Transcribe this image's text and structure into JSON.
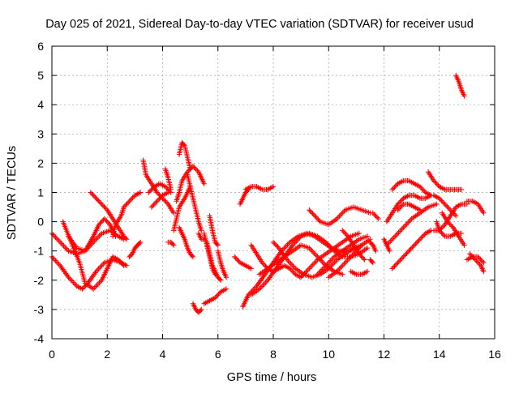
{
  "chart_data": {
    "type": "scatter",
    "title": "Day 025 of 2021, Sidereal Day-to-day VTEC variation (SDTVAR) for receiver usud",
    "xlabel": "GPS time / hours",
    "ylabel": "SDTVAR / TECUs",
    "xlim": [
      0,
      16
    ],
    "ylim": [
      -4,
      6
    ],
    "xticks": [
      0,
      2,
      4,
      6,
      8,
      10,
      12,
      14,
      16
    ],
    "yticks": [
      -4,
      -3,
      -2,
      -1,
      0,
      1,
      2,
      3,
      4,
      5,
      6
    ],
    "grid": true,
    "legend": "none",
    "marker": "plus",
    "series": [
      {
        "color": "#ff0000",
        "arcs": [
          {
            "x": [
              0.0,
              0.3,
              0.6,
              0.9,
              1.2,
              1.5,
              1.8,
              2.1,
              2.4,
              2.6
            ],
            "y": [
              -0.4,
              -0.7,
              -1.0,
              -1.1,
              -1.0,
              -0.7,
              -0.4,
              -0.3,
              -0.5,
              -0.6
            ]
          },
          {
            "x": [
              0.0,
              0.3,
              0.6,
              0.9,
              1.1,
              1.3,
              1.6,
              1.9,
              2.2,
              2.5,
              2.7
            ],
            "y": [
              -1.2,
              -1.5,
              -1.9,
              -2.2,
              -2.3,
              -2.1,
              -1.7,
              -1.4,
              -1.3,
              -1.4,
              -1.5
            ]
          },
          {
            "x": [
              0.4,
              0.7,
              1.0,
              1.2,
              1.5,
              1.8,
              2.0,
              2.2,
              2.4,
              2.6
            ],
            "y": [
              0.0,
              -0.7,
              -1.4,
              -2.1,
              -2.3,
              -2.0,
              -1.6,
              -1.2,
              -1.3,
              -1.5
            ]
          },
          {
            "x": [
              0.6,
              0.9,
              1.2,
              1.5,
              1.7,
              1.9,
              2.1,
              2.3
            ],
            "y": [
              -0.5,
              -0.9,
              -1.0,
              -0.5,
              -0.1,
              0.1,
              -0.1,
              -0.5
            ]
          },
          {
            "x": [
              1.4,
              1.6,
              1.8,
              2.0,
              2.2,
              2.4,
              2.6,
              2.7
            ],
            "y": [
              1.0,
              0.8,
              0.6,
              0.4,
              0.1,
              -0.2,
              -0.5,
              -0.6
            ]
          },
          {
            "x": [
              2.2,
              2.3,
              2.5,
              2.6,
              2.8,
              3.0,
              3.2
            ],
            "y": [
              -0.5,
              -0.1,
              0.2,
              0.5,
              0.7,
              0.9,
              1.0
            ]
          },
          {
            "x": [
              2.8,
              2.9,
              3.0,
              3.1,
              3.2
            ],
            "y": [
              -1.2,
              -1.1,
              -0.9,
              -0.8,
              -0.7
            ]
          },
          {
            "x": [
              3.3,
              3.4,
              3.6,
              3.8,
              4.0,
              4.2,
              4.4
            ],
            "y": [
              2.1,
              1.6,
              1.3,
              1.0,
              0.8,
              0.6,
              0.3
            ]
          },
          {
            "x": [
              3.5,
              3.7,
              3.9,
              4.1,
              4.3
            ],
            "y": [
              1.0,
              1.2,
              1.3,
              1.2,
              1.0
            ]
          },
          {
            "x": [
              3.6,
              3.8,
              4.0,
              4.2
            ],
            "y": [
              0.5,
              0.7,
              0.9,
              1.0
            ]
          },
          {
            "x": [
              4.1,
              4.2,
              4.3
            ],
            "y": [
              1.8,
              1.5,
              1.1
            ]
          },
          {
            "x": [
              4.2,
              4.3,
              4.4
            ],
            "y": [
              -0.7,
              -0.7,
              -0.8
            ]
          },
          {
            "x": [
              4.6,
              4.7,
              4.8,
              4.9,
              5.0
            ],
            "y": [
              2.3,
              2.7,
              2.6,
              2.2,
              1.8
            ]
          },
          {
            "x": [
              4.5,
              4.6,
              4.7,
              4.9,
              5.1,
              5.3,
              5.5
            ],
            "y": [
              0.7,
              1.0,
              1.4,
              1.7,
              1.9,
              1.7,
              1.3
            ]
          },
          {
            "x": [
              4.4,
              4.5,
              4.6,
              4.8,
              5.0
            ],
            "y": [
              -0.3,
              0.1,
              0.5,
              0.8,
              1.2
            ]
          },
          {
            "x": [
              4.6,
              4.7,
              4.8,
              4.9,
              5.0,
              5.1
            ],
            "y": [
              -0.2,
              -0.4,
              -0.6,
              -0.9,
              -1.1,
              -1.2
            ]
          },
          {
            "x": [
              4.9,
              5.0,
              5.1,
              5.2,
              5.3,
              5.4
            ],
            "y": [
              1.6,
              1.2,
              0.8,
              0.4,
              0.0,
              -0.3
            ]
          },
          {
            "x": [
              5.1,
              5.2,
              5.3,
              5.4
            ],
            "y": [
              -2.8,
              -3.0,
              -3.1,
              -3.0
            ]
          },
          {
            "x": [
              5.3,
              5.4,
              5.5
            ],
            "y": [
              -0.4,
              -0.6,
              -0.6
            ]
          },
          {
            "x": [
              5.5,
              5.6,
              5.7,
              5.8,
              5.9
            ],
            "y": [
              -0.4,
              -0.8,
              -1.2,
              -1.6,
              -1.8
            ]
          },
          {
            "x": [
              5.6,
              5.7,
              5.8,
              5.9,
              6.0,
              6.1
            ],
            "y": [
              -0.7,
              -1.1,
              -1.5,
              -1.7,
              -1.9,
              -2.0
            ]
          },
          {
            "x": [
              5.5,
              5.7,
              5.9,
              6.1,
              6.3
            ],
            "y": [
              -2.8,
              -2.7,
              -2.6,
              -2.4,
              -2.3
            ]
          },
          {
            "x": [
              5.7,
              5.8,
              5.9,
              6.0
            ],
            "y": [
              0.2,
              -0.3,
              -0.7,
              -0.8
            ]
          },
          {
            "x": [
              6.0,
              6.1,
              6.2,
              6.3
            ],
            "y": [
              -1.0,
              -1.4,
              -1.7,
              -1.9
            ]
          },
          {
            "x": [
              6.6,
              6.8,
              7.0,
              7.2
            ],
            "y": [
              -1.2,
              -1.4,
              -1.5,
              -1.6
            ]
          },
          {
            "x": [
              6.8,
              6.9,
              7.0,
              7.1
            ],
            "y": [
              0.6,
              0.8,
              1.0,
              1.1
            ]
          },
          {
            "x": [
              7.0,
              7.2,
              7.4,
              7.6,
              7.8,
              8.0
            ],
            "y": [
              1.1,
              1.2,
              1.2,
              1.1,
              1.1,
              1.2
            ]
          },
          {
            "x": [
              6.9,
              7.1,
              7.4,
              7.7,
              8.0,
              8.3,
              8.6,
              8.9,
              9.2,
              9.5,
              9.8,
              10.1,
              10.4,
              10.7,
              11.0
            ],
            "y": [
              -2.9,
              -2.5,
              -2.2,
              -1.8,
              -1.4,
              -1.0,
              -0.7,
              -0.5,
              -0.4,
              -0.5,
              -0.7,
              -0.9,
              -1.0,
              -1.0,
              -0.9
            ]
          },
          {
            "x": [
              7.2,
              7.5,
              7.8,
              8.1,
              8.4,
              8.7,
              9.0,
              9.3,
              9.6,
              9.9,
              10.2,
              10.5,
              10.8,
              11.1,
              11.4
            ],
            "y": [
              -2.5,
              -2.3,
              -2.0,
              -1.6,
              -1.2,
              -0.8,
              -0.5,
              -0.4,
              -0.5,
              -0.7,
              -1.0,
              -1.2,
              -1.2,
              -1.1,
              -0.9
            ]
          },
          {
            "x": [
              7.2,
              7.4,
              7.6,
              7.8,
              8.0,
              8.2,
              8.4,
              8.6,
              8.8,
              9.0
            ],
            "y": [
              -0.8,
              -1.1,
              -1.4,
              -1.6,
              -1.7,
              -1.6,
              -1.5,
              -1.6,
              -1.8,
              -1.9
            ]
          },
          {
            "x": [
              7.5,
              7.8,
              8.1,
              8.4,
              8.7,
              9.0,
              9.3,
              9.6,
              9.9,
              10.2,
              10.5
            ],
            "y": [
              -1.8,
              -1.6,
              -1.4,
              -1.2,
              -1.0,
              -0.8,
              -0.9,
              -1.2,
              -1.5,
              -1.7,
              -1.8
            ]
          },
          {
            "x": [
              8.0,
              8.2,
              8.5,
              8.8,
              9.1,
              9.4,
              9.7,
              10.0,
              10.3,
              10.6,
              10.9,
              11.2
            ],
            "y": [
              -0.7,
              -0.9,
              -1.3,
              -1.6,
              -1.8,
              -1.9,
              -1.8,
              -1.6,
              -1.3,
              -1.1,
              -0.9,
              -0.8
            ]
          },
          {
            "x": [
              9.3,
              9.5,
              9.7,
              10.0,
              10.3,
              10.6,
              10.9,
              11.2,
              11.5
            ],
            "y": [
              0.4,
              0.2,
              0.0,
              -0.1,
              0.1,
              0.4,
              0.5,
              0.4,
              0.3
            ]
          },
          {
            "x": [
              9.0,
              9.3,
              9.6,
              9.9,
              10.2,
              10.5,
              10.8,
              11.1
            ],
            "y": [
              -1.9,
              -1.6,
              -1.3,
              -1.1,
              -0.9,
              -0.7,
              -0.5,
              -0.4
            ]
          },
          {
            "x": [
              9.6,
              9.9,
              10.2,
              10.5,
              10.8,
              11.1,
              11.4
            ],
            "y": [
              -1.8,
              -1.5,
              -1.2,
              -1.0,
              -0.8,
              -0.6,
              -0.5
            ]
          },
          {
            "x": [
              10.0,
              10.3,
              10.6,
              10.9,
              11.2,
              11.5
            ],
            "y": [
              -1.9,
              -1.7,
              -1.4,
              -1.1,
              -0.8,
              -0.6
            ]
          },
          {
            "x": [
              10.5,
              10.7,
              10.9,
              11.1,
              11.3
            ],
            "y": [
              -0.3,
              -0.5,
              -0.8,
              -1.1,
              -1.3
            ]
          },
          {
            "x": [
              10.8,
              11.0,
              11.2,
              11.4
            ],
            "y": [
              -1.7,
              -1.8,
              -1.8,
              -1.7
            ]
          },
          {
            "x": [
              11.6,
              11.8
            ],
            "y": [
              0.3,
              0.1
            ]
          },
          {
            "x": [
              11.5,
              11.6,
              11.7
            ],
            "y": [
              -0.7,
              -0.8,
              -1.0
            ]
          },
          {
            "x": [
              11.5,
              11.6
            ],
            "y": [
              -1.3,
              -1.4
            ]
          },
          {
            "x": [
              12.0,
              12.1,
              12.2
            ],
            "y": [
              -0.6,
              -0.8,
              -1.0
            ]
          },
          {
            "x": [
              12.3,
              12.5,
              12.7,
              12.9,
              13.1,
              13.3,
              13.5,
              13.7
            ],
            "y": [
              1.1,
              1.3,
              1.4,
              1.4,
              1.3,
              1.2,
              1.0,
              0.9
            ]
          },
          {
            "x": [
              12.1,
              12.3,
              12.5,
              12.7,
              12.9,
              13.1,
              13.3,
              13.5,
              13.7
            ],
            "y": [
              0.0,
              0.3,
              0.6,
              0.8,
              0.9,
              0.9,
              0.8,
              0.8,
              0.9
            ]
          },
          {
            "x": [
              12.1,
              12.4,
              12.7,
              13.0,
              13.3,
              13.6,
              13.9
            ],
            "y": [
              -0.8,
              -0.5,
              -0.2,
              0.1,
              0.3,
              0.5,
              0.6
            ]
          },
          {
            "x": [
              12.3,
              12.5,
              12.7,
              12.9,
              13.1,
              13.3,
              13.5,
              13.7
            ],
            "y": [
              -1.6,
              -1.4,
              -1.2,
              -1.0,
              -0.8,
              -0.6,
              -0.4,
              -0.3
            ]
          },
          {
            "x": [
              12.5,
              12.7,
              12.9,
              13.1,
              13.3
            ],
            "y": [
              0.4,
              0.6,
              0.6,
              0.5,
              0.4
            ]
          },
          {
            "x": [
              13.6,
              13.8,
              14.0,
              14.2,
              14.4,
              14.6,
              14.8
            ],
            "y": [
              1.7,
              1.4,
              1.2,
              1.1,
              1.1,
              1.1,
              1.1
            ]
          },
          {
            "x": [
              13.8,
              14.0,
              14.2,
              14.4,
              14.6
            ],
            "y": [
              0.9,
              0.8,
              0.6,
              0.4,
              0.2
            ]
          },
          {
            "x": [
              13.8,
              14.0,
              14.2,
              14.4,
              14.6,
              14.8,
              15.0
            ],
            "y": [
              -0.3,
              -0.3,
              -0.1,
              0.2,
              0.5,
              0.6,
              0.6
            ]
          },
          {
            "x": [
              13.9,
              14.0,
              14.2,
              14.4,
              14.6,
              14.8
            ],
            "y": [
              0.0,
              -0.3,
              -0.5,
              -0.5,
              -0.4,
              -0.4
            ]
          },
          {
            "x": [
              14.1,
              14.3,
              14.5,
              14.7,
              14.9
            ],
            "y": [
              0.3,
              0.0,
              -0.2,
              -0.5,
              -0.8
            ]
          },
          {
            "x": [
              14.6,
              14.7,
              14.8,
              14.9
            ],
            "y": [
              5.0,
              4.8,
              4.5,
              4.3
            ]
          },
          {
            "x": [
              15.0,
              15.2,
              15.4,
              15.6
            ],
            "y": [
              0.7,
              0.7,
              0.6,
              0.3
            ]
          },
          {
            "x": [
              15.1,
              15.3,
              15.5,
              15.6
            ],
            "y": [
              -1.1,
              -1.3,
              -1.5,
              -1.7
            ]
          },
          {
            "x": [
              15.0,
              15.2,
              15.4,
              15.6
            ],
            "y": [
              -1.3,
              -1.2,
              -1.2,
              -1.4
            ]
          }
        ]
      }
    ]
  }
}
